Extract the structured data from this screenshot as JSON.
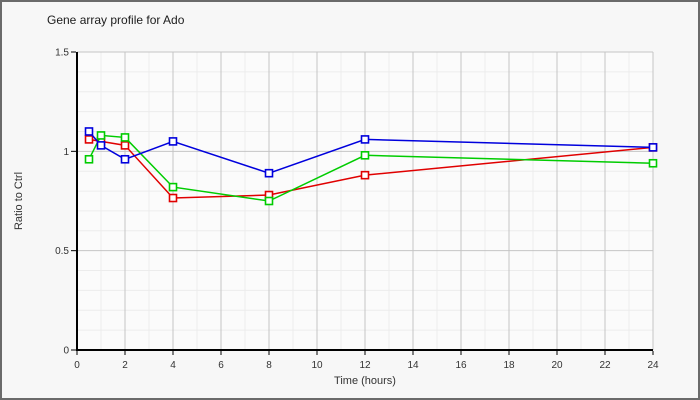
{
  "chart_data": {
    "type": "line",
    "title": "Gene array profile for Ado",
    "xlabel": "Time (hours)",
    "ylabel": "Ratio to Ctrl",
    "xlim": [
      0,
      24
    ],
    "ylim": [
      0,
      1.5
    ],
    "x_major_ticks": [
      0,
      2,
      4,
      6,
      8,
      10,
      12,
      14,
      16,
      18,
      20,
      22,
      24
    ],
    "x_minor_step": 1,
    "y_major_ticks": [
      0,
      0.5,
      1,
      1.5
    ],
    "y_minor_step": 0.1,
    "grid": "on",
    "legend_position": "none",
    "marker": "open-square",
    "x": [
      0.5,
      1,
      2,
      4,
      8,
      12,
      24
    ],
    "series": [
      {
        "name": "series-red",
        "color": "#e00000",
        "values": [
          1.06,
          1.05,
          1.03,
          0.765,
          0.78,
          0.88,
          1.02
        ]
      },
      {
        "name": "series-green",
        "color": "#00cc00",
        "values": [
          0.96,
          1.08,
          1.07,
          0.82,
          0.75,
          0.98,
          0.94
        ]
      },
      {
        "name": "series-blue",
        "color": "#0000dd",
        "values": [
          1.1,
          1.03,
          0.96,
          1.05,
          0.89,
          1.06,
          1.02
        ]
      }
    ]
  }
}
